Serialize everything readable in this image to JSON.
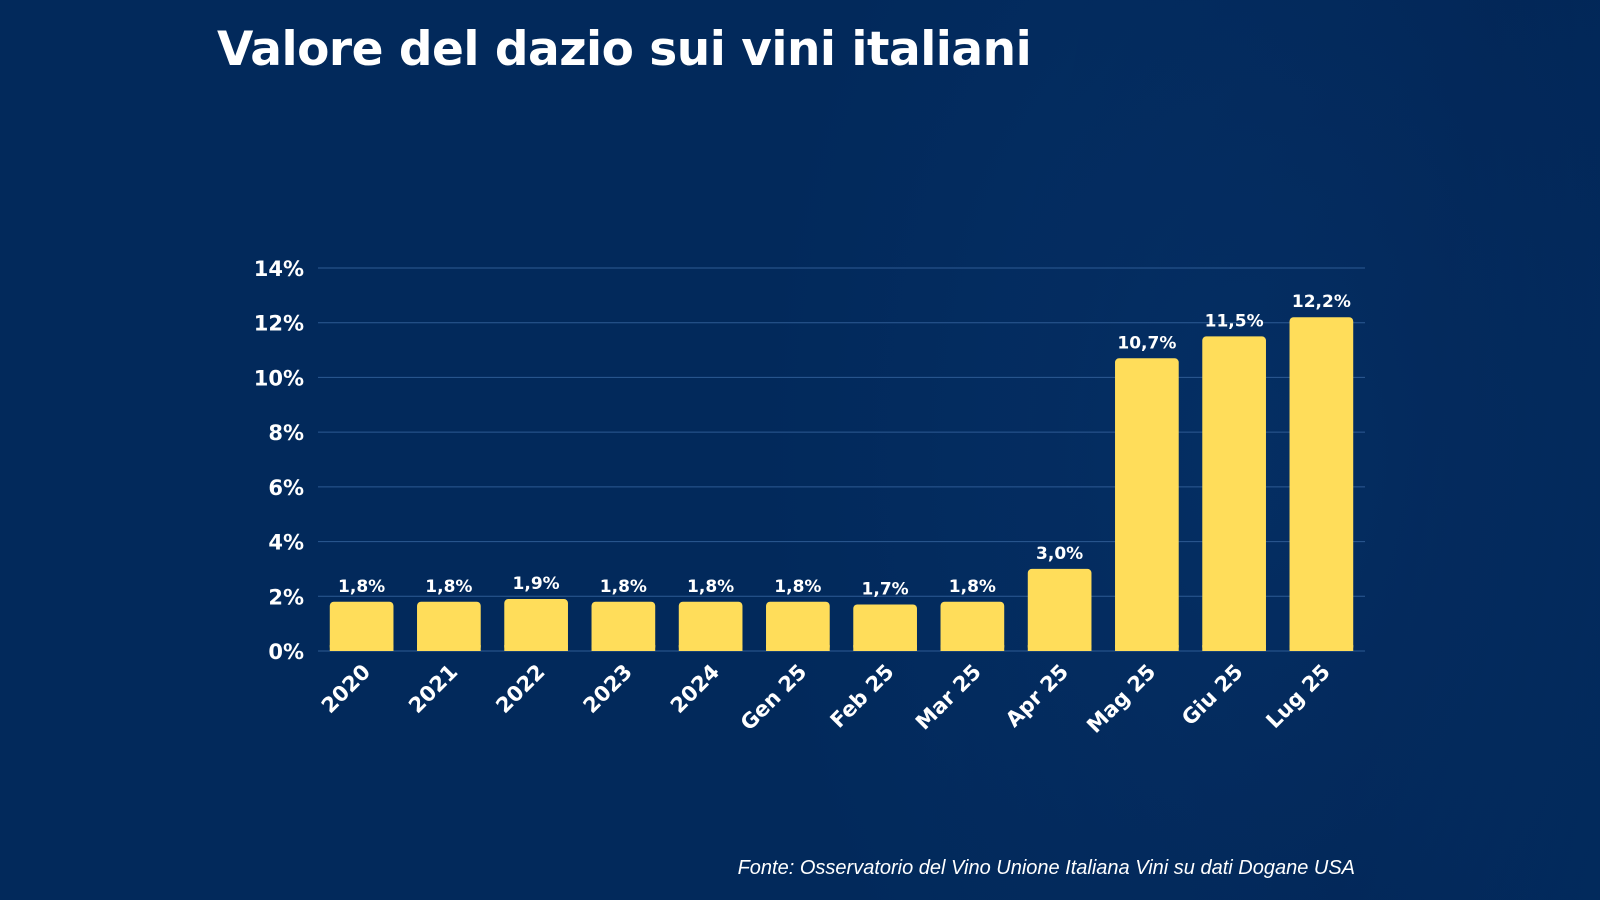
{
  "title": "Valore del dazio sui vini italiani",
  "source": "Fonte: Osservatorio del Vino Unione Italiana Vini su dati Dogane USA",
  "colors": {
    "background": "#02295b",
    "bar": "#ffdd5a",
    "text": "#ffffff",
    "grid": "#2d5a93"
  },
  "chart_data": {
    "type": "bar",
    "title": "Valore del dazio sui vini italiani",
    "xlabel": "",
    "ylabel": "",
    "categories": [
      "2020",
      "2021",
      "2022",
      "2023",
      "2024",
      "Gen 25",
      "Feb 25",
      "Mar 25",
      "Apr 25",
      "Mag 25",
      "Giu 25",
      "Lug 25"
    ],
    "values": [
      1.8,
      1.8,
      1.9,
      1.8,
      1.8,
      1.8,
      1.7,
      1.8,
      3.0,
      10.7,
      11.5,
      12.2
    ],
    "value_labels": [
      "1,8%",
      "1,8%",
      "1,9%",
      "1,8%",
      "1,8%",
      "1,8%",
      "1,7%",
      "1,8%",
      "3,0%",
      "10,7%",
      "11,5%",
      "12,2%"
    ],
    "ylim": [
      0,
      14
    ],
    "yticks": [
      0,
      2,
      4,
      6,
      8,
      10,
      12,
      14
    ],
    "ytick_labels": [
      "0%",
      "2%",
      "4%",
      "6%",
      "8%",
      "10%",
      "12%",
      "14%"
    ],
    "grid": true,
    "legend": "none",
    "source": "Fonte: Osservatorio del Vino Unione Italiana Vini su dati Dogane USA"
  }
}
